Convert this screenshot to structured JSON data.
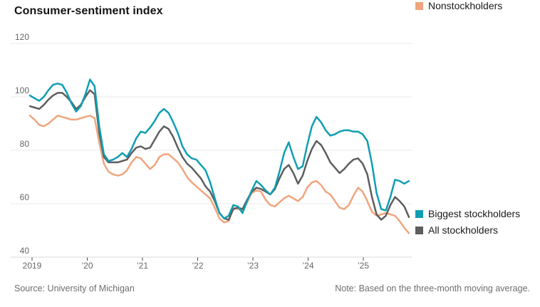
{
  "title": "Consumer-sentiment index",
  "footer": {
    "source": "Source: University of Michigan",
    "note": "Note: Based on the three-month moving average."
  },
  "chart_data": {
    "type": "line",
    "title": "Consumer-sentiment index",
    "x_start": "2019-01",
    "x_interval": "month",
    "x_ticks": [
      "2019",
      "’20",
      "’21",
      "’22",
      "’23",
      "’24",
      "’25"
    ],
    "y_ticks": [
      120,
      100,
      80,
      60,
      40
    ],
    "ylim": [
      40,
      120
    ],
    "grid": "horizontal-only",
    "legend_position": "right-of-line-ends",
    "series": [
      {
        "name": "Biggest stockholders",
        "color": "#0f9eb1",
        "values": [
          100.5,
          99.5,
          98.5,
          100,
          102.5,
          104.5,
          105,
          104.5,
          101.5,
          97.5,
          94.5,
          96.5,
          101,
          106.5,
          104,
          89,
          78.5,
          76,
          76.5,
          77.5,
          79,
          77.5,
          80.5,
          84.5,
          87,
          86.5,
          88.5,
          91,
          94,
          95.5,
          94,
          90.5,
          86.5,
          81.5,
          78.5,
          77,
          76.5,
          74.5,
          72.5,
          68,
          62,
          56.5,
          54.5,
          55.5,
          59.5,
          59,
          56.5,
          61,
          65,
          68.5,
          67,
          65,
          63.5,
          66,
          72,
          79,
          83,
          77.5,
          73,
          74,
          82,
          89,
          92.5,
          90.5,
          87.5,
          85.5,
          86,
          87,
          87.5,
          87.5,
          87,
          87,
          86,
          83.5,
          75,
          64,
          58,
          57.5,
          62.5,
          69,
          68.5,
          67.5,
          68.5
        ]
      },
      {
        "name": "All stockholders",
        "color": "#5e5e5e",
        "values": [
          96.5,
          96,
          95.5,
          97,
          99,
          100.5,
          101.5,
          101.5,
          100,
          98,
          95.5,
          97,
          100,
          102.5,
          101,
          86.5,
          77.5,
          75.5,
          75.5,
          75.5,
          76,
          76.5,
          79,
          81,
          81.5,
          80.5,
          81,
          84,
          87,
          89,
          88,
          85,
          81,
          77.5,
          75,
          73.5,
          71.5,
          69.5,
          66.5,
          64.5,
          61,
          56.5,
          54.5,
          54,
          58,
          58.5,
          58,
          61.5,
          64.5,
          66,
          65.5,
          64.5,
          63.5,
          65.5,
          69.5,
          73,
          74.5,
          71.5,
          67.5,
          70.5,
          76,
          80.5,
          83.5,
          82,
          79,
          75.5,
          73.5,
          71.5,
          73,
          75,
          76.5,
          77,
          75,
          71,
          62.5,
          56,
          54,
          55.5,
          59.5,
          62.5,
          61,
          59,
          55
        ]
      },
      {
        "name": "Nonstockholders",
        "color": "#f0a57e",
        "values": [
          93,
          91.5,
          89.5,
          89,
          90,
          91.5,
          93,
          92.5,
          92,
          91.5,
          91.5,
          92,
          92.5,
          93,
          92,
          83,
          75,
          72,
          71,
          70.5,
          71,
          72.5,
          75.5,
          77.5,
          77,
          75,
          73,
          74.5,
          77.5,
          78.5,
          78.5,
          77,
          75.5,
          73,
          70,
          68,
          66.5,
          65,
          63.5,
          62,
          58.5,
          54.5,
          53,
          53.5,
          58.5,
          58,
          57.5,
          60.5,
          64,
          65,
          64.5,
          61.5,
          59.5,
          59,
          60.5,
          62,
          63,
          62,
          61,
          62.5,
          66,
          68,
          68.5,
          67,
          64.5,
          63.5,
          61,
          58.5,
          58,
          59.5,
          63,
          66,
          64.5,
          61,
          57,
          55.5,
          56,
          56.5,
          56,
          55.5,
          53.5,
          51,
          49
        ]
      }
    ]
  }
}
